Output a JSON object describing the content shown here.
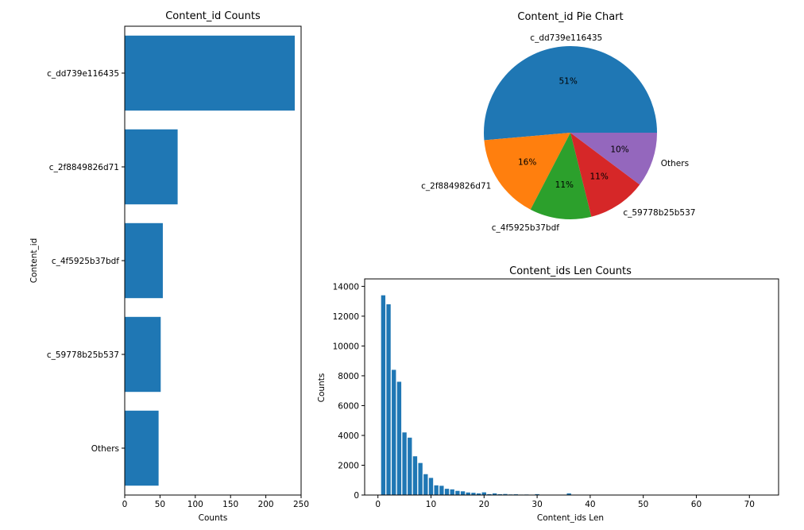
{
  "chart_data": [
    {
      "type": "bar",
      "orientation": "horizontal",
      "title": "Content_id Counts",
      "xlabel": "Counts",
      "ylabel": "Content_id",
      "categories": [
        "c_dd739e116435",
        "c_2f8849826d71",
        "c_4f5925b37bdf",
        "c_59778b25b537",
        "Others"
      ],
      "values": [
        241,
        75,
        54,
        51,
        48
      ],
      "xlim": [
        0,
        250
      ],
      "xticks": [
        "0",
        "50",
        "100",
        "150",
        "200",
        "250"
      ],
      "color": "#1f77b4",
      "grid": false
    },
    {
      "type": "pie",
      "title": "Content_id Pie Chart",
      "labels": [
        "c_dd739e116435",
        "c_2f8849826d71",
        "c_4f5925b37bdf",
        "c_59778b25b537",
        "Others"
      ],
      "percent_labels": [
        "51%",
        "16%",
        "11%",
        "11%",
        "10%"
      ],
      "values": [
        241,
        75,
        54,
        51,
        48
      ],
      "colors": [
        "#1f77b4",
        "#ff7f0e",
        "#2ca02c",
        "#d62728",
        "#9467bd"
      ]
    },
    {
      "type": "bar",
      "title": "Content_ids Len Counts",
      "xlabel": "Content_ids Len",
      "ylabel": "Counts",
      "xlim": [
        -2.5,
        75.5
      ],
      "ylim": [
        0,
        14500
      ],
      "xticks": [
        "0",
        "10",
        "20",
        "30",
        "40",
        "50",
        "60",
        "70"
      ],
      "yticks": [
        "0",
        "2000",
        "4000",
        "6000",
        "8000",
        "10000",
        "12000",
        "14000"
      ],
      "x": [
        1,
        2,
        3,
        4,
        5,
        6,
        7,
        8,
        9,
        10,
        11,
        12,
        13,
        14,
        15,
        16,
        17,
        18,
        19,
        20,
        21,
        22,
        23,
        24,
        25,
        26,
        27,
        28,
        29,
        30,
        36
      ],
      "values": [
        13400,
        12800,
        8400,
        7600,
        4200,
        3850,
        2600,
        2150,
        1400,
        1150,
        650,
        620,
        420,
        380,
        280,
        250,
        170,
        150,
        110,
        180,
        60,
        110,
        55,
        70,
        40,
        50,
        30,
        35,
        20,
        60,
        110
      ],
      "color": "#1f77b4",
      "grid": false
    }
  ]
}
